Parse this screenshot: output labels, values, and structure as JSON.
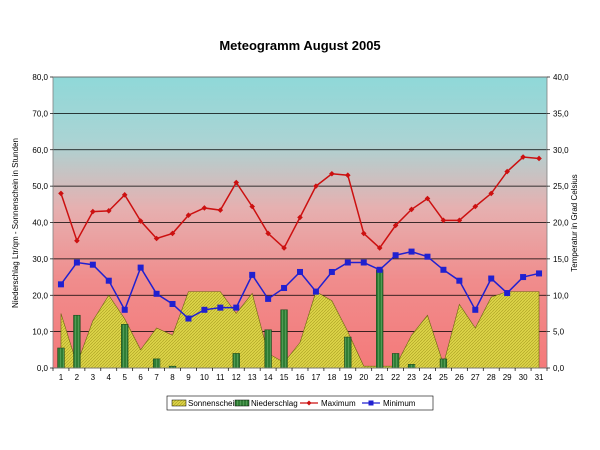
{
  "chart_data": {
    "type": "bar",
    "title": "Meteogramm August 2005",
    "ylabel_left": "Niederschlag Ltr/qm  -  Sonnenschein in Stunden",
    "ylabel_right": "Temperatur in Grad Celsius",
    "categories": [
      "1",
      "2",
      "3",
      "4",
      "5",
      "6",
      "7",
      "8",
      "9",
      "10",
      "11",
      "12",
      "13",
      "14",
      "15",
      "16",
      "17",
      "18",
      "19",
      "20",
      "21",
      "22",
      "23",
      "24",
      "25",
      "26",
      "27",
      "28",
      "29",
      "30",
      "31"
    ],
    "ylim_left": [
      0,
      80
    ],
    "ylim_right": [
      0,
      40
    ],
    "yticks_left": [
      "0,0",
      "10,0",
      "20,0",
      "30,0",
      "40,0",
      "50,0",
      "60,0",
      "70,0",
      "80,0"
    ],
    "yticks_right": [
      "0,0",
      "5,0",
      "10,0",
      "15,0",
      "20,0",
      "25,0",
      "30,0",
      "35,0",
      "40,0"
    ],
    "grid": true,
    "legend_position": "bottom",
    "series": [
      {
        "name": "Sonnenschein",
        "kind": "area",
        "axis": "left",
        "color": "#d8d040",
        "values": [
          15.0,
          1.0,
          13.0,
          20.0,
          13.5,
          5.0,
          11.0,
          9.0,
          21.0,
          21.0,
          21.0,
          15.0,
          20.5,
          4.0,
          1.5,
          7.0,
          21.0,
          18.5,
          10.0,
          0.5,
          0.5,
          0.5,
          9.0,
          14.5,
          1.0,
          17.5,
          11.0,
          19.5,
          21.0,
          21.0,
          21.0
        ]
      },
      {
        "name": "Niederschlag",
        "kind": "bar",
        "axis": "left",
        "color": "#3c8c3c",
        "values": [
          5.5,
          14.5,
          0,
          0,
          12.0,
          0,
          2.5,
          0.5,
          0,
          0,
          0,
          4.0,
          0,
          10.5,
          16.0,
          0,
          0,
          0,
          8.5,
          0,
          27.0,
          4.0,
          1.0,
          0,
          2.5,
          0,
          0,
          0,
          0,
          0,
          0
        ]
      },
      {
        "name": "Maximum",
        "kind": "line",
        "axis": "right",
        "color": "#cc1010",
        "values": [
          24.0,
          17.5,
          21.5,
          21.6,
          23.8,
          20.2,
          17.8,
          18.5,
          21.0,
          22.0,
          21.7,
          25.5,
          22.2,
          18.5,
          16.5,
          20.7,
          25.0,
          26.7,
          26.5,
          18.5,
          16.5,
          19.6,
          21.8,
          23.3,
          20.3,
          20.3,
          22.2,
          24.0,
          27.0,
          29.0,
          28.8
        ]
      },
      {
        "name": "Minimum",
        "kind": "line",
        "axis": "right",
        "color": "#2020d0",
        "values": [
          11.5,
          14.5,
          14.2,
          12.0,
          8.0,
          13.8,
          10.2,
          8.8,
          6.8,
          8.0,
          8.3,
          8.3,
          12.8,
          9.5,
          11.0,
          13.2,
          10.5,
          13.2,
          14.5,
          14.5,
          13.5,
          15.5,
          16.0,
          15.3,
          13.5,
          12.0,
          8.0,
          12.3,
          10.3,
          12.5,
          13.0
        ]
      }
    ]
  }
}
